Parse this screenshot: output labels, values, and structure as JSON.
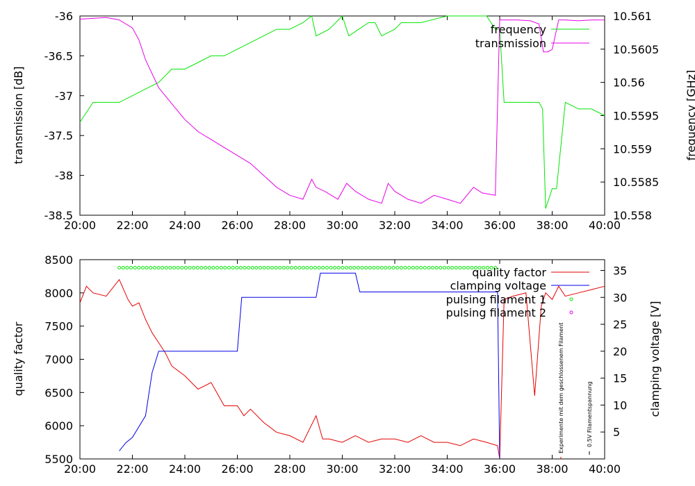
{
  "colors": {
    "frequency": "#00e600",
    "transmission": "#e600e6",
    "quality": "#e60000",
    "clamping": "#0000e6",
    "pulse1": "#00e600",
    "pulse2": "#e600e6"
  },
  "chart_data": [
    {
      "type": "line",
      "xlim": [
        "20:00",
        "40:00"
      ],
      "x_ticks": [
        "20:00",
        "22:00",
        "24:00",
        "26:00",
        "28:00",
        "30:00",
        "32:00",
        "34:00",
        "36:00",
        "38:00",
        "40:00"
      ],
      "ylabel": "transmission [dB]",
      "ylim": [
        -38.5,
        -36
      ],
      "y_ticks": [
        "-36",
        "-36.5",
        "-37",
        "-37.5",
        "-38",
        "-38.5"
      ],
      "y2label": "frequency [GHz]",
      "y2lim": [
        10.558,
        10.561
      ],
      "y2_ticks": [
        "10.561",
        "10.5605",
        "10.56",
        "10.5595",
        "10.559",
        "10.5585",
        "10.558"
      ],
      "legend_position": "top-right",
      "series": [
        {
          "name": "frequency",
          "axis": "right",
          "x": [
            "20:00",
            "20:30",
            "21:00",
            "21:30",
            "22:00",
            "22:30",
            "23:00",
            "23:30",
            "24:00",
            "24:30",
            "25:00",
            "25:30",
            "26:00",
            "26:30",
            "27:00",
            "27:30",
            "28:00",
            "28:30",
            "28:50",
            "29:00",
            "29:30",
            "30:00",
            "30:15",
            "31:00",
            "31:15",
            "31:30",
            "32:00",
            "32:15",
            "32:30",
            "33:00",
            "34:00",
            "34:30",
            "35:00",
            "35:30",
            "35:50",
            "36:00",
            "36:10",
            "36:30",
            "37:00",
            "37:30",
            "37:38",
            "37:45",
            "38:00",
            "38:10",
            "38:30",
            "39:00",
            "39:30",
            "40:00"
          ],
          "y": [
            10.5594,
            10.5597,
            10.5597,
            10.5597,
            10.5598,
            10.5599,
            10.56,
            10.5602,
            10.5602,
            10.5603,
            10.5604,
            10.5604,
            10.5605,
            10.5606,
            10.5607,
            10.5608,
            10.5608,
            10.5609,
            10.561,
            10.5607,
            10.5608,
            10.561,
            10.5607,
            10.5609,
            10.5609,
            10.5607,
            10.5608,
            10.5609,
            10.5609,
            10.5609,
            10.561,
            10.561,
            10.561,
            10.561,
            10.5608,
            10.5608,
            10.5597,
            10.5597,
            10.5597,
            10.5597,
            10.5596,
            10.5581,
            10.5584,
            10.5584,
            10.5597,
            10.5596,
            10.5596,
            10.5595
          ]
        },
        {
          "name": "transmission",
          "axis": "left",
          "x": [
            "20:00",
            "20:30",
            "21:00",
            "21:30",
            "22:00",
            "22:15",
            "22:30",
            "23:00",
            "23:30",
            "24:00",
            "24:30",
            "25:00",
            "25:30",
            "26:00",
            "26:30",
            "27:00",
            "27:30",
            "28:00",
            "28:30",
            "28:50",
            "29:00",
            "29:20",
            "29:50",
            "30:10",
            "30:30",
            "31:00",
            "31:30",
            "31:45",
            "32:00",
            "32:30",
            "33:00",
            "33:30",
            "34:00",
            "34:30",
            "35:00",
            "35:20",
            "35:50",
            "36:00",
            "36:10",
            "36:40",
            "37:10",
            "37:30",
            "37:40",
            "37:50",
            "38:00",
            "38:15",
            "38:30",
            "39:00",
            "39:30",
            "40:00"
          ],
          "y": [
            -36.04,
            -36.03,
            -36.02,
            -36.05,
            -36.15,
            -36.3,
            -36.55,
            -36.9,
            -37.1,
            -37.3,
            -37.45,
            -37.55,
            -37.65,
            -37.75,
            -37.85,
            -38.0,
            -38.15,
            -38.25,
            -38.3,
            -38.05,
            -38.15,
            -38.2,
            -38.3,
            -38.1,
            -38.2,
            -38.3,
            -38.35,
            -38.1,
            -38.2,
            -38.3,
            -38.35,
            -38.25,
            -38.3,
            -38.35,
            -38.15,
            -38.22,
            -38.25,
            -36.05,
            -36.05,
            -36.05,
            -36.06,
            -36.1,
            -36.45,
            -36.45,
            -36.42,
            -36.05,
            -36.05,
            -36.06,
            -36.05,
            -36.05
          ]
        }
      ]
    },
    {
      "type": "line",
      "xlim": [
        "20:00",
        "40:00"
      ],
      "x_ticks": [
        "20:00",
        "22:00",
        "24:00",
        "26:00",
        "28:00",
        "30:00",
        "32:00",
        "34:00",
        "36:00",
        "38:00",
        "40:00"
      ],
      "ylabel": "quality factor",
      "ylim": [
        5500,
        8500
      ],
      "y_ticks": [
        "8500",
        "8000",
        "7500",
        "7000",
        "6500",
        "6000",
        "5500"
      ],
      "y2label": "clamping voltage [V]",
      "y2lim": [
        0,
        37
      ],
      "y2_ticks": [
        "35",
        "30",
        "25",
        "20",
        "15",
        "10",
        "5"
      ],
      "legend_position": "top-right",
      "series": [
        {
          "name": "quality factor",
          "axis": "left",
          "x": [
            "20:00",
            "20:15",
            "20:30",
            "21:00",
            "21:30",
            "21:50",
            "22:00",
            "22:15",
            "22:30",
            "22:45",
            "23:00",
            "23:15",
            "23:30",
            "24:00",
            "24:30",
            "25:00",
            "25:30",
            "26:00",
            "26:15",
            "26:30",
            "27:00",
            "27:30",
            "28:00",
            "28:30",
            "29:00",
            "29:15",
            "29:30",
            "30:00",
            "30:30",
            "31:00",
            "31:30",
            "32:00",
            "32:30",
            "33:00",
            "33:30",
            "34:00",
            "34:30",
            "35:00",
            "35:30",
            "35:55",
            "36:00",
            "36:10",
            "36:30",
            "37:00",
            "37:20",
            "37:35",
            "37:45",
            "38:00",
            "38:15",
            "38:30",
            "39:00",
            "39:30",
            "40:00"
          ],
          "y": [
            7850,
            8100,
            8000,
            7950,
            8200,
            7900,
            7800,
            7850,
            7600,
            7400,
            7250,
            7100,
            6900,
            6750,
            6550,
            6650,
            6300,
            6300,
            6150,
            6250,
            6050,
            5900,
            5850,
            5750,
            6150,
            5800,
            5800,
            5750,
            5850,
            5750,
            5800,
            5800,
            5750,
            5850,
            5750,
            5750,
            5700,
            5800,
            5750,
            5700,
            5500,
            7900,
            7950,
            8000,
            6450,
            7800,
            8000,
            7900,
            8100,
            7950,
            8000,
            8050,
            8100
          ]
        },
        {
          "name": "clamping voltage",
          "axis": "right",
          "x": [
            "21:30",
            "21:45",
            "22:00",
            "22:30",
            "22:45",
            "23:00",
            "23:15",
            "26:00",
            "26:10",
            "29:00",
            "29:10",
            "30:30",
            "30:40",
            "35:55",
            "36:00"
          ],
          "y": [
            1.5,
            3,
            4,
            8,
            16,
            20,
            20,
            20,
            30,
            30,
            34.5,
            34.5,
            31,
            31,
            0
          ]
        },
        {
          "name": "pulsing filament 1",
          "axis": "right",
          "style": "points",
          "x_start": "21:30",
          "x_end": "35:50",
          "y": 35.5
        },
        {
          "name": "pulsing filament 2",
          "axis": "right",
          "style": "points",
          "x": [],
          "y": []
        }
      ],
      "annotations": [
        {
          "text": "Experimente mit dem geschlossenem Filament",
          "x": "38:20"
        },
        {
          "text": "0.5V Filamentspannung",
          "x": "39:30"
        }
      ]
    }
  ]
}
